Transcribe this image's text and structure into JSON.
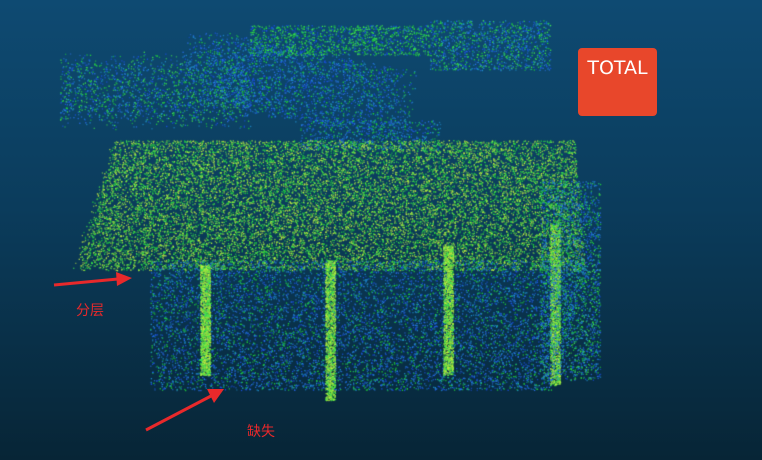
{
  "badge": {
    "label": "TOTAL",
    "color": "#e8472b"
  },
  "annotations": {
    "layering_label": "分层",
    "missing_label": "缺失",
    "color": "#e8292b"
  },
  "background": {
    "top": "#0e4a72",
    "bottom": "#072536"
  },
  "point_colors": [
    "#1fd23a",
    "#3fe84a",
    "#8fe040",
    "#1f8fd0",
    "#1a4fe0",
    "#2a6ee8",
    "#c8f040"
  ]
}
